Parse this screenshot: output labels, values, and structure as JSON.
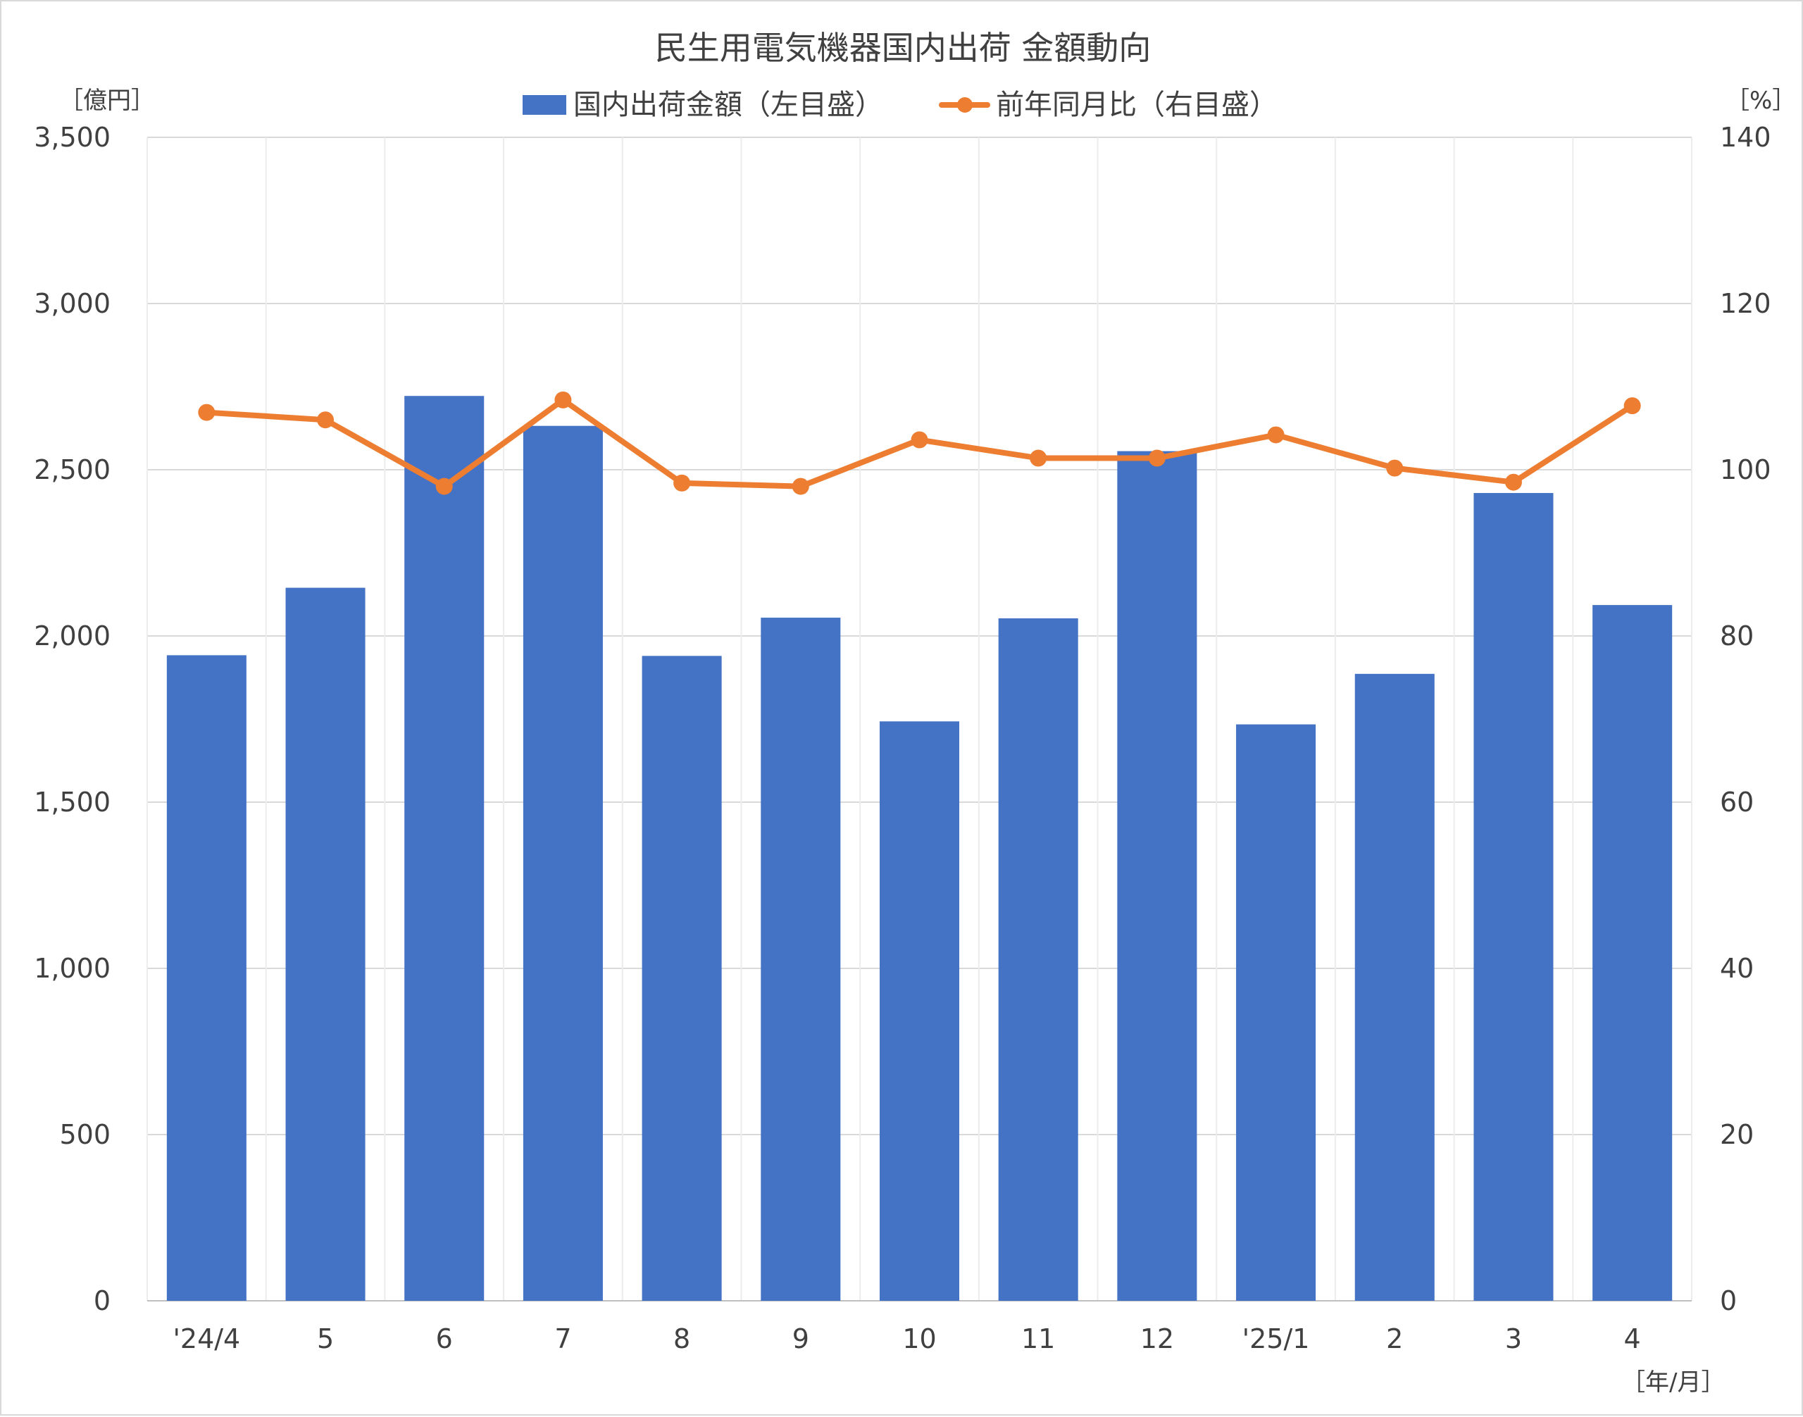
{
  "chart_data": {
    "type": "bar",
    "title": "民生用電気機器国内出荷 金額動向",
    "categories": [
      "'24/4",
      "5",
      "6",
      "7",
      "8",
      "9",
      "10",
      "11",
      "12",
      "'25/1",
      "2",
      "3",
      "4"
    ],
    "series": [
      {
        "name": "国内出荷金額（左目盛）",
        "type": "bar",
        "axis": "left",
        "color": "#4472C4",
        "values": [
          1942,
          2145,
          2722,
          2632,
          1940,
          2055,
          1743,
          2053,
          2556,
          1734,
          1886,
          2430,
          2093
        ]
      },
      {
        "name": "前年同月比（右目盛）",
        "type": "line",
        "axis": "right",
        "color": "#ED7D31",
        "values": [
          106.9,
          106.0,
          98.0,
          108.4,
          98.4,
          98.0,
          103.6,
          101.4,
          101.4,
          104.2,
          100.2,
          98.5,
          107.7
        ]
      }
    ],
    "y_left": {
      "unit_label": "［億円］",
      "min": 0,
      "max": 3500,
      "step": 500
    },
    "y_right": {
      "unit_label": "［%］",
      "min": 0,
      "max": 140,
      "step": 20
    },
    "x_unit_label": "［年/月］",
    "grid": true,
    "legend_position": "top"
  }
}
